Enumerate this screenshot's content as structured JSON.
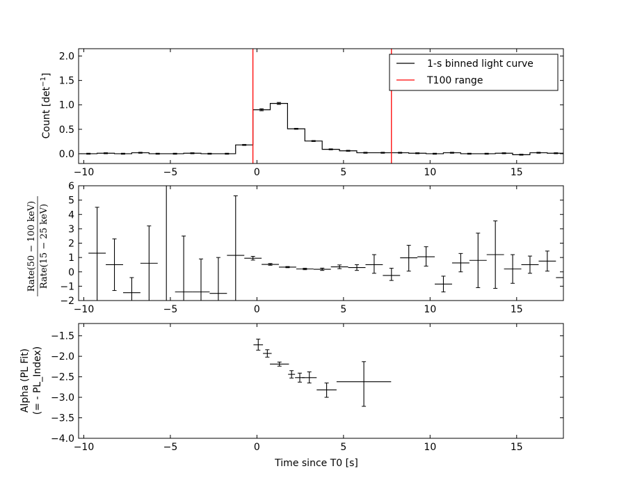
{
  "colors": {
    "line": "#000000",
    "t100": "#ff0000",
    "background": "#ffffff"
  },
  "chart_data": [
    {
      "type": "line",
      "name": "light-curve",
      "xlim": [
        -10.3,
        17.7
      ],
      "ylim": [
        -0.2,
        2.15
      ],
      "xticks": [
        -10,
        -5,
        0,
        5,
        10,
        15
      ],
      "xtick_labels": [
        "−10",
        "−5",
        "0",
        "5",
        "10",
        "15"
      ],
      "yticks": [
        0.0,
        0.5,
        1.0,
        1.5,
        2.0
      ],
      "ytick_labels": [
        "0.0",
        "0.5",
        "1.0",
        "1.5",
        "2.0"
      ],
      "ylabel_main": "Count [det",
      "ylabel_sup": "−1",
      "ylabel_end": "]",
      "legend": [
        {
          "label": "1-s binned light curve",
          "color": "#000000"
        },
        {
          "label": "T100 range",
          "color": "#ff0000"
        }
      ],
      "legend_position": "upper right",
      "t100_range": [
        -0.232,
        7.768
      ],
      "bin_edges": [
        -10.232,
        -9.232,
        -8.232,
        -7.232,
        -6.232,
        -5.232,
        -4.232,
        -3.232,
        -2.232,
        -1.232,
        -0.232,
        0.768,
        1.768,
        2.768,
        3.768,
        4.768,
        5.768,
        6.768,
        7.768,
        8.768,
        9.768,
        10.768,
        11.768,
        12.768,
        13.768,
        14.768,
        15.768,
        16.768,
        17.768
      ],
      "counts": [
        0.0,
        0.01,
        0.0,
        0.02,
        0.0,
        0.0,
        0.01,
        0.0,
        0.0,
        0.18,
        0.9,
        1.03,
        0.51,
        0.26,
        0.09,
        0.06,
        0.02,
        0.02,
        0.02,
        0.01,
        0.0,
        0.02,
        0.0,
        0.0,
        0.01,
        -0.02,
        0.02,
        0.01
      ],
      "errors": [
        0.01,
        0.01,
        0.01,
        0.01,
        0.01,
        0.01,
        0.01,
        0.01,
        0.01,
        0.01,
        0.02,
        0.02,
        0.01,
        0.01,
        0.01,
        0.01,
        0.01,
        0.01,
        0.01,
        0.01,
        0.01,
        0.01,
        0.01,
        0.01,
        0.01,
        0.01,
        0.01,
        0.01
      ]
    },
    {
      "type": "scatter",
      "name": "hardness-ratio",
      "xlim": [
        -10.3,
        17.7
      ],
      "ylim": [
        -2,
        6
      ],
      "xticks": [
        -10,
        -5,
        0,
        5,
        10,
        15
      ],
      "xtick_labels": [
        "−10",
        "−5",
        "0",
        "5",
        "10",
        "15"
      ],
      "yticks": [
        -2,
        -1,
        0,
        1,
        2,
        3,
        4,
        5,
        6
      ],
      "ytick_labels": [
        "−2",
        "−1",
        "0",
        "1",
        "2",
        "3",
        "4",
        "5",
        "6"
      ],
      "ylabel_numerator": "Rate(50 − 100 keV)",
      "ylabel_denominator": "Rate(15 − 25 keV)",
      "points": [
        {
          "x": -9.23,
          "xerr": 0.5,
          "y": 1.3,
          "ylo": -2.0,
          "yhi": 4.5
        },
        {
          "x": -8.23,
          "xerr": 0.5,
          "y": 0.5,
          "ylo": -1.3,
          "yhi": 2.3
        },
        {
          "x": -7.23,
          "xerr": 0.5,
          "y": -1.45,
          "ylo": -2.0,
          "yhi": -0.4
        },
        {
          "x": -6.23,
          "xerr": 0.5,
          "y": 0.6,
          "ylo": -2.0,
          "yhi": 3.2
        },
        {
          "x": -5.23,
          "xerr": 0.0,
          "y": 2.0,
          "ylo": -2.0,
          "yhi": 6.0
        },
        {
          "x": -4.23,
          "xerr": 0.5,
          "y": -1.4,
          "ylo": -2.0,
          "yhi": 2.5
        },
        {
          "x": -3.23,
          "xerr": 0.5,
          "y": -1.4,
          "ylo": -2.0,
          "yhi": 0.9
        },
        {
          "x": -2.23,
          "xerr": 0.5,
          "y": -1.5,
          "ylo": -2.0,
          "yhi": 1.0
        },
        {
          "x": -1.23,
          "xerr": 0.5,
          "y": 1.15,
          "ylo": -2.0,
          "yhi": 5.3
        },
        {
          "x": -0.23,
          "xerr": 0.5,
          "y": 0.95,
          "ylo": 0.82,
          "yhi": 1.08
        },
        {
          "x": 0.77,
          "xerr": 0.5,
          "y": 0.52,
          "ylo": 0.46,
          "yhi": 0.58
        },
        {
          "x": 1.77,
          "xerr": 0.5,
          "y": 0.33,
          "ylo": 0.29,
          "yhi": 0.37
        },
        {
          "x": 2.77,
          "xerr": 0.5,
          "y": 0.2,
          "ylo": 0.15,
          "yhi": 0.25
        },
        {
          "x": 3.77,
          "xerr": 0.5,
          "y": 0.18,
          "ylo": 0.1,
          "yhi": 0.26
        },
        {
          "x": 4.77,
          "xerr": 0.5,
          "y": 0.35,
          "ylo": 0.22,
          "yhi": 0.48
        },
        {
          "x": 5.77,
          "xerr": 0.5,
          "y": 0.3,
          "ylo": 0.1,
          "yhi": 0.5
        },
        {
          "x": 6.77,
          "xerr": 0.5,
          "y": 0.5,
          "ylo": -0.1,
          "yhi": 1.2
        },
        {
          "x": 7.77,
          "xerr": 0.5,
          "y": -0.25,
          "ylo": -0.6,
          "yhi": 0.25
        },
        {
          "x": 8.77,
          "xerr": 0.5,
          "y": 0.98,
          "ylo": 0.05,
          "yhi": 1.85
        },
        {
          "x": 9.77,
          "xerr": 0.5,
          "y": 1.05,
          "ylo": 0.4,
          "yhi": 1.75
        },
        {
          "x": 10.77,
          "xerr": 0.5,
          "y": -0.85,
          "ylo": -1.4,
          "yhi": -0.3
        },
        {
          "x": 11.77,
          "xerr": 0.5,
          "y": 0.62,
          "ylo": 0.0,
          "yhi": 1.28
        },
        {
          "x": 12.77,
          "xerr": 0.5,
          "y": 0.8,
          "ylo": -1.1,
          "yhi": 2.7
        },
        {
          "x": 13.77,
          "xerr": 0.5,
          "y": 1.2,
          "ylo": -1.15,
          "yhi": 3.55
        },
        {
          "x": 14.77,
          "xerr": 0.5,
          "y": 0.2,
          "ylo": -0.8,
          "yhi": 1.2
        },
        {
          "x": 15.77,
          "xerr": 0.5,
          "y": 0.5,
          "ylo": -0.1,
          "yhi": 1.1
        },
        {
          "x": 16.77,
          "xerr": 0.5,
          "y": 0.75,
          "ylo": 0.05,
          "yhi": 1.45
        },
        {
          "x": 17.77,
          "xerr": 0.5,
          "y": -0.4,
          "ylo": -0.4,
          "yhi": -0.4
        }
      ]
    },
    {
      "type": "scatter",
      "name": "alpha",
      "xlim": [
        -10.3,
        17.7
      ],
      "ylim": [
        -4.0,
        -1.2
      ],
      "xticks": [
        -10,
        -5,
        0,
        5,
        10,
        15
      ],
      "xtick_labels": [
        "−10",
        "−5",
        "0",
        "5",
        "10",
        "15"
      ],
      "yticks": [
        -1.5,
        -2.0,
        -2.5,
        -3.0,
        -3.5,
        -4.0
      ],
      "ytick_labels": [
        "−1.5",
        "−2.0",
        "−2.5",
        "−3.0",
        "−3.5",
        "−4.0"
      ],
      "ylabel_line1": "Alpha (PL Fit)",
      "ylabel_line2": "(= - PL_Index)",
      "xlabel": "Time since T0 [s]",
      "points": [
        {
          "xlo": -0.2,
          "xhi": 0.35,
          "y": -1.72,
          "ylo": -1.85,
          "yhi": -1.58
        },
        {
          "xlo": 0.35,
          "xhi": 0.85,
          "y": -1.93,
          "ylo": -2.02,
          "yhi": -1.84
        },
        {
          "xlo": 0.75,
          "xhi": 1.85,
          "y": -2.19,
          "ylo": -2.24,
          "yhi": -2.14
        },
        {
          "xlo": 1.8,
          "xhi": 2.2,
          "y": -2.44,
          "ylo": -2.53,
          "yhi": -2.35
        },
        {
          "xlo": 2.2,
          "xhi": 2.75,
          "y": -2.52,
          "ylo": -2.63,
          "yhi": -2.41
        },
        {
          "xlo": 2.6,
          "xhi": 3.45,
          "y": -2.52,
          "ylo": -2.65,
          "yhi": -2.38
        },
        {
          "xlo": 3.45,
          "xhi": 4.6,
          "y": -2.82,
          "ylo": -3.0,
          "yhi": -2.65
        },
        {
          "xlo": 4.6,
          "xhi": 7.75,
          "y": -2.62,
          "ylo": -3.22,
          "yhi": -2.13
        }
      ]
    }
  ]
}
